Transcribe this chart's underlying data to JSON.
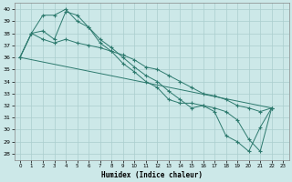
{
  "xlabel": "Humidex (Indice chaleur)",
  "background_color": "#cce8e8",
  "line_color": "#2d7a6e",
  "grid_color": "#aacece",
  "xlim": [
    -0.5,
    23.5
  ],
  "ylim": [
    27.5,
    40.5
  ],
  "xticks": [
    0,
    1,
    2,
    3,
    4,
    5,
    6,
    7,
    8,
    9,
    10,
    11,
    12,
    13,
    14,
    15,
    16,
    17,
    18,
    19,
    20,
    21,
    22,
    23
  ],
  "yticks": [
    28,
    29,
    30,
    31,
    32,
    33,
    34,
    35,
    36,
    37,
    38,
    39,
    40
  ],
  "series": [
    {
      "x": [
        0,
        1,
        2,
        3,
        4,
        5,
        6,
        7,
        8,
        9,
        10,
        11,
        12,
        13,
        14,
        15,
        16,
        17,
        18,
        19,
        20,
        21,
        22
      ],
      "y": [
        36,
        38,
        39.5,
        39.5,
        40,
        39,
        38.5,
        37.2,
        36.5,
        35.5,
        34.8,
        34.0,
        33.5,
        32.5,
        32.2,
        32.2,
        32.0,
        31.5,
        29.5,
        29.0,
        28.2,
        30.2,
        31.8
      ],
      "has_markers": true
    },
    {
      "x": [
        0,
        1,
        2,
        3,
        4,
        5,
        6,
        7,
        8,
        9,
        10,
        11,
        12,
        13,
        14,
        15,
        16,
        17,
        18,
        19,
        20,
        21,
        22
      ],
      "y": [
        36,
        38,
        38.2,
        37.5,
        39.8,
        39.5,
        38.5,
        37.5,
        36.8,
        36.0,
        35.2,
        34.5,
        34.0,
        33.2,
        32.5,
        31.8,
        32.0,
        31.8,
        31.5,
        30.8,
        29.2,
        28.2,
        31.8
      ],
      "has_markers": true
    },
    {
      "x": [
        0,
        1,
        2,
        3,
        4,
        5,
        6,
        7,
        8,
        9,
        10,
        11,
        12,
        13,
        14,
        15,
        16,
        17,
        18,
        19,
        20,
        21,
        22
      ],
      "y": [
        36,
        38,
        37.5,
        37.2,
        37.5,
        37.2,
        37.0,
        36.8,
        36.5,
        36.2,
        35.8,
        35.2,
        35.0,
        34.5,
        34.0,
        33.5,
        33.0,
        32.8,
        32.5,
        32.0,
        31.8,
        31.5,
        31.8
      ],
      "has_markers": true
    },
    {
      "x": [
        0,
        22
      ],
      "y": [
        36,
        31.8
      ],
      "has_markers": false
    }
  ]
}
